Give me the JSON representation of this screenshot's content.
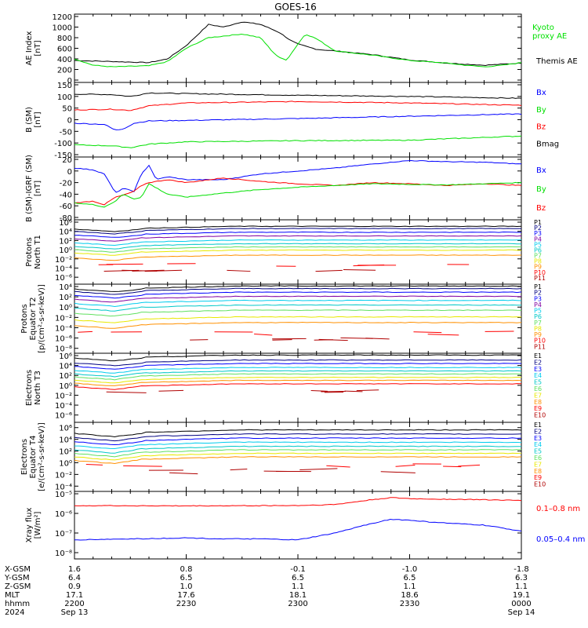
{
  "title": "GOES-16",
  "colors": {
    "black": "#000000",
    "green": "#00e000",
    "blue": "#0000ff",
    "red": "#ff0000",
    "dark_red": "#b00000",
    "navy": "#000080",
    "purple": "#8000a0",
    "cyan": "#00ccee",
    "yellow": "#e8e800",
    "orange": "#ff9000",
    "teal": "#00c8c8",
    "light_green": "#60e060"
  },
  "x_axis": {
    "min": 2200,
    "max": 2400,
    "ticks": [
      2200,
      2230,
      2300,
      2330,
      2400
    ],
    "rows": [
      {
        "label": "X-GSM",
        "values": [
          "1.6",
          "0.8",
          "-0.1",
          "-1.0",
          "-1.8"
        ]
      },
      {
        "label": "Y-GSM",
        "values": [
          "6.4",
          "6.5",
          "6.5",
          "6.5",
          "6.3"
        ]
      },
      {
        "label": "Z-GSM",
        "values": [
          "0.9",
          "1.0",
          "1.1",
          "1.1",
          "1.1"
        ]
      },
      {
        "label": "MLT",
        "values": [
          "17.1",
          "17.6",
          "18.1",
          "18.6",
          "19.1"
        ]
      },
      {
        "label": "hhmm",
        "values": [
          "2200",
          "2230",
          "2300",
          "2330",
          "0000"
        ]
      },
      {
        "label": "2024",
        "values": [
          "Sep 13",
          "",
          "",
          "",
          "Sep 14"
        ]
      }
    ]
  },
  "chart_data": [
    {
      "type": "line",
      "ylabel": [
        "AE Index",
        "[nT]"
      ],
      "y_scale": "linear",
      "ylim": [
        0,
        1200
      ],
      "yticks": [
        0,
        200,
        400,
        600,
        800,
        1000,
        1200
      ],
      "ytick_labels": [
        "0",
        "200",
        "400",
        "600",
        "800",
        "1000",
        "1200"
      ],
      "legend": [
        {
          "text": "Kyoto",
          "color": "#00e000"
        },
        {
          "text": "proxy AE",
          "color": "#00e000"
        },
        {
          "text": "Themis AE",
          "color": "#000000"
        }
      ],
      "series": [
        {
          "name": "Themis AE",
          "color": "#000000",
          "x": [
            2200,
            2210,
            2220,
            2225,
            2230,
            2233,
            2236,
            2240,
            2245,
            2250,
            2255,
            2258,
            2300,
            2305,
            2310,
            2320,
            2330,
            2340,
            2350,
            2355,
            2400
          ],
          "y": [
            370,
            350,
            330,
            400,
            650,
            850,
            1050,
            1000,
            1100,
            1050,
            900,
            750,
            680,
            580,
            550,
            480,
            380,
            320,
            280,
            300,
            320
          ]
        },
        {
          "name": "Kyoto proxy AE",
          "color": "#00e000",
          "x": [
            2200,
            2205,
            2210,
            2220,
            2225,
            2230,
            2233,
            2236,
            2240,
            2245,
            2250,
            2253,
            2255,
            2257,
            2300,
            2302,
            2305,
            2310,
            2320,
            2330,
            2340,
            2345,
            2350,
            2355,
            2400
          ],
          "y": [
            400,
            280,
            250,
            270,
            350,
            600,
            700,
            800,
            830,
            870,
            800,
            550,
            420,
            380,
            680,
            870,
            780,
            550,
            470,
            370,
            320,
            280,
            250,
            280,
            330
          ]
        }
      ]
    },
    {
      "type": "line",
      "ylabel": [
        "B (SM)",
        "[nT]"
      ],
      "y_scale": "linear",
      "ylim": [
        -150,
        150
      ],
      "yticks": [
        -150,
        -100,
        -50,
        0,
        50,
        100,
        150
      ],
      "ytick_labels": [
        "-150",
        "-100",
        "-50",
        "0",
        "50",
        "100",
        "150"
      ],
      "legend": [
        {
          "text": "Bx",
          "color": "#0000ff"
        },
        {
          "text": "By",
          "color": "#00e000"
        },
        {
          "text": "Bz",
          "color": "#ff0000"
        },
        {
          "text": "Bmag",
          "color": "#000000"
        }
      ],
      "series": [
        {
          "name": "Bmag",
          "color": "#000000",
          "x": [
            2200,
            2210,
            2215,
            2220,
            2230,
            2300,
            2330,
            2400
          ],
          "y": [
            110,
            108,
            100,
            115,
            112,
            105,
            100,
            92
          ]
        },
        {
          "name": "Bz",
          "color": "#ff0000",
          "x": [
            2200,
            2210,
            2215,
            2220,
            2230,
            2300,
            2330,
            2400
          ],
          "y": [
            42,
            45,
            40,
            60,
            72,
            78,
            72,
            62
          ]
        },
        {
          "name": "Bx",
          "color": "#0000ff",
          "x": [
            2200,
            2208,
            2211,
            2213,
            2216,
            2220,
            2230,
            2300,
            2330,
            2400
          ],
          "y": [
            -15,
            -20,
            -45,
            -40,
            -15,
            -5,
            -3,
            5,
            15,
            25
          ]
        },
        {
          "name": "By",
          "color": "#00e000",
          "x": [
            2200,
            2210,
            2215,
            2220,
            2230,
            2300,
            2330,
            2400
          ],
          "y": [
            -108,
            -112,
            -120,
            -105,
            -95,
            -90,
            -88,
            -70
          ]
        }
      ]
    },
    {
      "type": "line",
      "ylabel": [
        "B (SM)-IGRF (SM)",
        "[nT]"
      ],
      "y_scale": "linear",
      "ylim": [
        -80,
        20
      ],
      "yticks": [
        -80,
        -60,
        -40,
        -20,
        0,
        20
      ],
      "ytick_labels": [
        "-80",
        "-60",
        "-40",
        "-20",
        "0",
        "20"
      ],
      "legend": [
        {
          "text": "Bx",
          "color": "#0000ff"
        },
        {
          "text": "By",
          "color": "#00e000"
        },
        {
          "text": "Bz",
          "color": "#ff0000"
        }
      ],
      "series": [
        {
          "name": "Bx",
          "color": "#0000ff",
          "x": [
            2200,
            2205,
            2208,
            2211,
            2213,
            2216,
            2218,
            2220,
            2222,
            2225,
            2230,
            2240,
            2250,
            2300,
            2310,
            2320,
            2330,
            2340,
            2350,
            2400
          ],
          "y": [
            5,
            2,
            -5,
            -38,
            -30,
            -35,
            -5,
            10,
            -15,
            -10,
            -15,
            -15,
            -5,
            0,
            5,
            12,
            18,
            16,
            15,
            12
          ]
        },
        {
          "name": "Bz",
          "color": "#ff0000",
          "x": [
            2200,
            2205,
            2208,
            2211,
            2213,
            2216,
            2218,
            2220,
            2225,
            2230,
            2240,
            2250,
            2300,
            2310,
            2320,
            2330,
            2340,
            2350,
            2400
          ],
          "y": [
            -55,
            -52,
            -58,
            -45,
            -42,
            -35,
            -25,
            -20,
            -15,
            -20,
            -12,
            -18,
            -22,
            -25,
            -20,
            -22,
            -25,
            -22,
            -25
          ]
        },
        {
          "name": "By",
          "color": "#00e000",
          "x": [
            2200,
            2205,
            2208,
            2211,
            2213,
            2216,
            2218,
            2220,
            2225,
            2230,
            2240,
            2250,
            2300,
            2310,
            2320,
            2330,
            2340,
            2350,
            2400
          ],
          "y": [
            -55,
            -58,
            -62,
            -52,
            -40,
            -48,
            -45,
            -22,
            -40,
            -45,
            -38,
            -32,
            -28,
            -25,
            -22,
            -23,
            -24,
            -22,
            -20
          ]
        }
      ]
    },
    {
      "type": "line",
      "ylabel": [
        "Protons",
        "North T1"
      ],
      "y_scale": "log",
      "ytick_exponents": [
        -6,
        -4,
        -2,
        0,
        2,
        4,
        6
      ],
      "ytick_labels": [
        "10⁻⁶",
        "10⁻⁴",
        "10⁻²",
        "10⁰",
        "10²",
        "10⁴",
        "10⁶"
      ],
      "ylim_log10": [
        -7,
        6
      ],
      "legend": [
        {
          "text": "P1",
          "color": "#000000"
        },
        {
          "text": "P2",
          "color": "#000080"
        },
        {
          "text": "P3",
          "color": "#0000ff"
        },
        {
          "text": "P4",
          "color": "#8000a0"
        },
        {
          "text": "P5",
          "color": "#00ccee"
        },
        {
          "text": "P6",
          "color": "#00c8c8"
        },
        {
          "text": "P7",
          "color": "#60e060"
        },
        {
          "text": "P8",
          "color": "#e8e800"
        },
        {
          "text": "P9",
          "color": "#ff9000"
        },
        {
          "text": "P10",
          "color": "#ff0000"
        },
        {
          "text": "P11",
          "color": "#b00000"
        }
      ],
      "channel_log10": [
        4.5,
        4.0,
        3.2,
        2.4,
        1.5,
        0.7,
        0.0,
        -0.7,
        -1.8,
        -3.3,
        -4.5
      ],
      "sparse_channels": [
        9,
        10
      ]
    },
    {
      "type": "line",
      "ylabel": [
        "Protons",
        "Equator T2",
        "[p/(cm²-s-sr-keV)]"
      ],
      "y_scale": "log",
      "ytick_exponents": [
        -8,
        -6,
        -4,
        -2,
        0,
        2,
        4
      ],
      "ytick_labels": [
        "10⁻⁸",
        "10⁻⁶",
        "10⁻⁴",
        "10⁻²",
        "10⁰",
        "10²",
        "10⁴"
      ],
      "ylim_log10": [
        -8.5,
        4
      ],
      "legend": [
        {
          "text": "P1",
          "color": "#000000"
        },
        {
          "text": "P2",
          "color": "#000080"
        },
        {
          "text": "P3",
          "color": "#0000ff"
        },
        {
          "text": "P4",
          "color": "#8000a0"
        },
        {
          "text": "P5",
          "color": "#00ccee"
        },
        {
          "text": "P6",
          "color": "#00c8c8"
        },
        {
          "text": "P7",
          "color": "#60e060"
        },
        {
          "text": "P8",
          "color": "#e8e800"
        },
        {
          "text": "P9",
          "color": "#ff9000"
        },
        {
          "text": "P10",
          "color": "#ff0000"
        },
        {
          "text": "P11",
          "color": "#b00000"
        }
      ],
      "channel_log10": [
        3.5,
        3.0,
        2.3,
        1.5,
        0.7,
        -0.2,
        -1.2,
        -2.5,
        -3.6,
        -5.0,
        -6.2
      ],
      "sparse_channels": [
        9,
        10
      ]
    },
    {
      "type": "line",
      "ylabel": [
        "Electrons",
        "North T3"
      ],
      "y_scale": "log",
      "ytick_exponents": [
        -6,
        -4,
        -2,
        0,
        2,
        4,
        6
      ],
      "ytick_labels": [
        "10⁻⁶",
        "10⁻⁴",
        "10⁻²",
        "10⁰",
        "10²",
        "10⁴",
        "10⁶"
      ],
      "ylim_log10": [
        -7,
        6
      ],
      "legend": [
        {
          "text": "E1",
          "color": "#000000"
        },
        {
          "text": "E2",
          "color": "#000080"
        },
        {
          "text": "E3",
          "color": "#0000ff"
        },
        {
          "text": "E4",
          "color": "#00ccee"
        },
        {
          "text": "E5",
          "color": "#00c8c8"
        },
        {
          "text": "E6",
          "color": "#60e060"
        },
        {
          "text": "E7",
          "color": "#e8e800"
        },
        {
          "text": "E8",
          "color": "#ff9000"
        },
        {
          "text": "E9",
          "color": "#ff0000"
        },
        {
          "text": "E10",
          "color": "#b00000"
        }
      ],
      "channel_log10": [
        5.5,
        4.5,
        3.8,
        3.0,
        2.3,
        1.7,
        1.0,
        0.4,
        -0.3,
        -1.2
      ],
      "sparse_channels": [
        9
      ]
    },
    {
      "type": "line",
      "ylabel": [
        "Electrons",
        "Equator T4",
        "[e/(cm²-s-sr-keV)]"
      ],
      "y_scale": "log",
      "ytick_exponents": [
        -4,
        -2,
        0,
        2,
        4,
        6
      ],
      "ytick_labels": [
        "10⁻⁴",
        "10⁻²",
        "10⁰",
        "10²",
        "10⁴",
        "10⁶"
      ],
      "ylim_log10": [
        -4.5,
        6.5
      ],
      "legend": [
        {
          "text": "E1",
          "color": "#000000"
        },
        {
          "text": "E2",
          "color": "#000080"
        },
        {
          "text": "E3",
          "color": "#0000ff"
        },
        {
          "text": "E4",
          "color": "#00ccee"
        },
        {
          "text": "E5",
          "color": "#00c8c8"
        },
        {
          "text": "E6",
          "color": "#60e060"
        },
        {
          "text": "E7",
          "color": "#e8e800"
        },
        {
          "text": "E8",
          "color": "#ff9000"
        },
        {
          "text": "E9",
          "color": "#ff0000"
        },
        {
          "text": "E10",
          "color": "#b00000"
        }
      ],
      "channel_log10": [
        5.0,
        4.3,
        3.6,
        2.9,
        2.2,
        1.6,
        1.0,
        0.4,
        -0.4,
        -1.5
      ],
      "sparse_channels": [
        8,
        9
      ]
    },
    {
      "type": "line",
      "ylabel": [
        "Xray flux",
        "[W/m²]"
      ],
      "y_scale": "log",
      "ytick_exponents": [
        -8,
        -7,
        -6,
        -5
      ],
      "ytick_labels": [
        "10⁻⁸",
        "10⁻⁷",
        "10⁻⁶",
        "10⁻⁵"
      ],
      "ylim_log10": [
        -8.2,
        -5
      ],
      "legend": [
        {
          "text": "0.1–0.8 nm",
          "color": "#ff0000"
        },
        {
          "text": "0.05–0.4 nm",
          "color": "#0000ff"
        }
      ],
      "series": [
        {
          "name": "0.1–0.8 nm",
          "color": "#ff0000",
          "x": [
            2200,
            2230,
            2300,
            2310,
            2320,
            2325,
            2330,
            2340,
            2350,
            2400
          ],
          "log10_y": [
            -5.6,
            -5.62,
            -5.6,
            -5.55,
            -5.3,
            -5.2,
            -5.25,
            -5.28,
            -5.3,
            -5.35
          ]
        },
        {
          "name": "0.05–0.4 nm",
          "color": "#0000ff",
          "x": [
            2200,
            2215,
            2230,
            2240,
            2250,
            2300,
            2310,
            2320,
            2325,
            2330,
            2340,
            2350,
            2400
          ],
          "log10_y": [
            -7.35,
            -7.3,
            -7.25,
            -7.3,
            -7.3,
            -7.35,
            -7.0,
            -6.5,
            -6.3,
            -6.35,
            -6.5,
            -6.6,
            -6.9
          ]
        }
      ]
    }
  ]
}
